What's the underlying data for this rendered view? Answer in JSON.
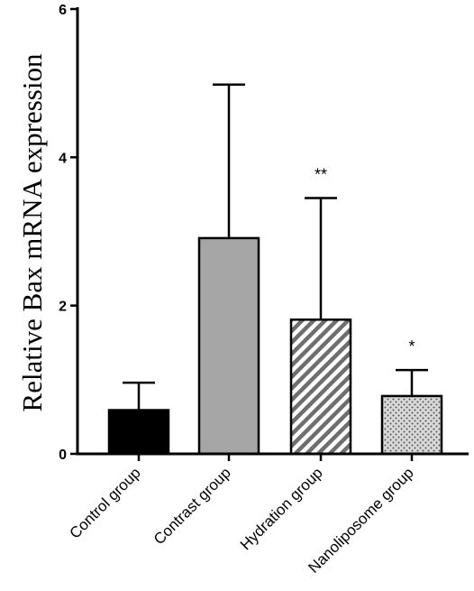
{
  "chart_data": {
    "type": "bar",
    "title": "",
    "xlabel": "",
    "ylabel": "Relative Bax mRNA expression",
    "ylim": [
      0,
      6
    ],
    "yticks": [
      0,
      2,
      4,
      6
    ],
    "grid": false,
    "categories": [
      "Control group",
      "Contrast group",
      "Hydration group",
      "Nanoliposome group"
    ],
    "values": [
      0.59,
      2.91,
      1.81,
      0.78
    ],
    "error_upper": [
      0.96,
      4.98,
      3.45,
      1.13
    ],
    "annotations": [
      "",
      "",
      "**",
      "*"
    ],
    "fills": [
      {
        "style": "solid",
        "color": "#000000"
      },
      {
        "style": "solid",
        "color": "#a6a6a6"
      },
      {
        "style": "diagonal-hatch",
        "color": "#6e6e6e"
      },
      {
        "style": "dots",
        "color": "#d9d9d9"
      }
    ]
  }
}
